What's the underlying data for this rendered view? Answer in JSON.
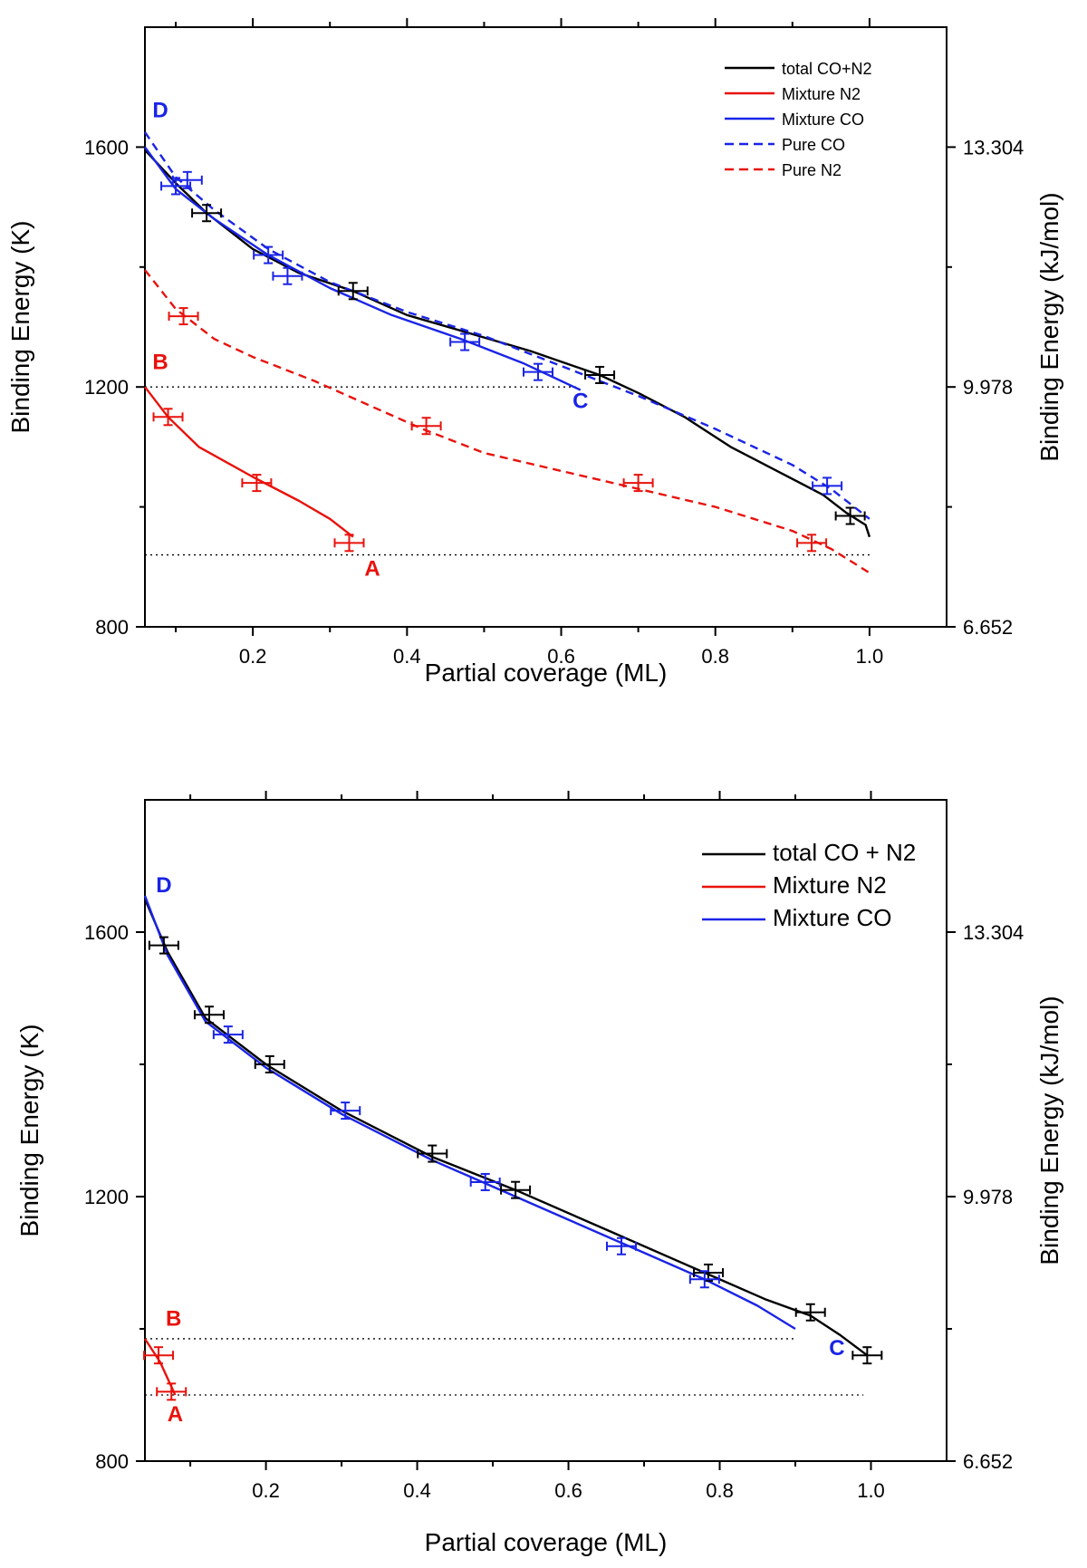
{
  "chart_data": [
    {
      "type": "line",
      "xlabel": "Partial coverage (ML)",
      "ylabel": "Binding Energy (K)",
      "ylabel_right": "Binding Energy (kJ/mol)",
      "xlim": [
        0.06,
        1.1
      ],
      "ylim": [
        800,
        1800
      ],
      "x_ticks": [
        "0.2",
        "0.4",
        "0.6",
        "0.8",
        "1.0"
      ],
      "x_tick_values": [
        0.2,
        0.4,
        0.6,
        0.8,
        1.0
      ],
      "y_ticks": [
        "800",
        "1200",
        "1600"
      ],
      "y_tick_values": [
        800,
        1200,
        1600
      ],
      "y_right_ticks": [
        "6.652",
        "9.978",
        "13.304"
      ],
      "legend_position": "top-right",
      "series": [
        {
          "name": "total CO+N2",
          "color": "#000000",
          "dash": false,
          "x": [
            0.06,
            0.1,
            0.14,
            0.2,
            0.26,
            0.33,
            0.4,
            0.48,
            0.56,
            0.65,
            0.7,
            0.76,
            0.82,
            0.88,
            0.94,
            0.97,
            0.995,
            1.0
          ],
          "y": [
            1595,
            1540,
            1490,
            1430,
            1390,
            1360,
            1320,
            1290,
            1260,
            1220,
            1190,
            1150,
            1100,
            1060,
            1020,
            990,
            970,
            950
          ],
          "errorbars": [
            {
              "x": 0.14,
              "y": 1490
            },
            {
              "x": 0.33,
              "y": 1360
            },
            {
              "x": 0.65,
              "y": 1220
            },
            {
              "x": 0.975,
              "y": 985
            }
          ]
        },
        {
          "name": "Mixture N2",
          "color": "#e8120c",
          "dash": false,
          "x": [
            0.06,
            0.09,
            0.13,
            0.2,
            0.26,
            0.3,
            0.33
          ],
          "y": [
            1200,
            1150,
            1100,
            1050,
            1010,
            980,
            950
          ],
          "errorbars": [
            {
              "x": 0.09,
              "y": 1150
            },
            {
              "x": 0.205,
              "y": 1040
            },
            {
              "x": 0.325,
              "y": 940
            }
          ]
        },
        {
          "name": "Mixture CO",
          "color": "#1a24e6",
          "dash": false,
          "x": [
            0.06,
            0.1,
            0.15,
            0.22,
            0.3,
            0.38,
            0.47,
            0.55,
            0.6,
            0.625
          ],
          "y": [
            1600,
            1530,
            1480,
            1420,
            1365,
            1320,
            1280,
            1240,
            1210,
            1195
          ],
          "errorbars": [
            {
              "x": 0.1,
              "y": 1535
            },
            {
              "x": 0.22,
              "y": 1420
            },
            {
              "x": 0.245,
              "y": 1385
            },
            {
              "x": 0.475,
              "y": 1275
            },
            {
              "x": 0.57,
              "y": 1225
            }
          ]
        },
        {
          "name": "Pure CO",
          "color": "#1a24e6",
          "dash": true,
          "x": [
            0.06,
            0.1,
            0.15,
            0.22,
            0.3,
            0.4,
            0.5,
            0.6,
            0.7,
            0.8,
            0.9,
            0.95,
            1.0
          ],
          "y": [
            1625,
            1550,
            1495,
            1430,
            1375,
            1325,
            1285,
            1235,
            1185,
            1130,
            1070,
            1030,
            980
          ],
          "errorbars": [
            {
              "x": 0.115,
              "y": 1545
            },
            {
              "x": 0.945,
              "y": 1035
            }
          ]
        },
        {
          "name": "Pure N2",
          "color": "#e8120c",
          "dash": true,
          "x": [
            0.06,
            0.1,
            0.15,
            0.2,
            0.28,
            0.35,
            0.42,
            0.5,
            0.6,
            0.7,
            0.8,
            0.9,
            0.95,
            1.0
          ],
          "y": [
            1395,
            1330,
            1280,
            1250,
            1210,
            1170,
            1130,
            1090,
            1060,
            1030,
            1000,
            960,
            930,
            890
          ],
          "errorbars": [
            {
              "x": 0.11,
              "y": 1318
            },
            {
              "x": 0.425,
              "y": 1135
            },
            {
              "x": 0.7,
              "y": 1040
            },
            {
              "x": 0.925,
              "y": 940
            }
          ]
        }
      ],
      "reference_lines": [
        {
          "y": 1200,
          "x_end": 0.62
        },
        {
          "y": 920,
          "x_end": 1.0
        }
      ],
      "point_labels": [
        {
          "text": "D",
          "x": 0.08,
          "y": 1650,
          "color": "#1a24e6"
        },
        {
          "text": "B",
          "x": 0.08,
          "y": 1230,
          "color": "#e8120c"
        },
        {
          "text": "C",
          "x": 0.625,
          "y": 1165,
          "color": "#1a24e6"
        },
        {
          "text": "A",
          "x": 0.355,
          "y": 885,
          "color": "#e8120c"
        }
      ]
    },
    {
      "type": "line",
      "xlabel": "Partial coverage (ML)",
      "ylabel": "Binding Energy (K)",
      "ylabel_right": "Binding Energy (kJ/mol)",
      "xlim": [
        0.04,
        1.1
      ],
      "ylim": [
        800,
        1800
      ],
      "x_ticks": [
        "0.2",
        "0.4",
        "0.6",
        "0.8",
        "1.0"
      ],
      "x_tick_values": [
        0.2,
        0.4,
        0.6,
        0.8,
        1.0
      ],
      "y_ticks": [
        "800",
        "1200",
        "1600"
      ],
      "y_tick_values": [
        800,
        1200,
        1600
      ],
      "y_right_ticks": [
        "6.652",
        "9.978",
        "13.304"
      ],
      "legend_position": "top-right",
      "series": [
        {
          "name": "total CO + N2",
          "color": "#000000",
          "dash": false,
          "x": [
            0.04,
            0.07,
            0.12,
            0.2,
            0.3,
            0.42,
            0.53,
            0.65,
            0.78,
            0.86,
            0.92,
            0.96,
            0.995
          ],
          "y": [
            1650,
            1570,
            1470,
            1400,
            1330,
            1260,
            1210,
            1150,
            1085,
            1045,
            1020,
            990,
            960
          ],
          "errorbars": [
            {
              "x": 0.065,
              "y": 1580
            },
            {
              "x": 0.125,
              "y": 1475
            },
            {
              "x": 0.205,
              "y": 1400
            },
            {
              "x": 0.42,
              "y": 1265
            },
            {
              "x": 0.53,
              "y": 1210
            },
            {
              "x": 0.785,
              "y": 1085
            },
            {
              "x": 0.92,
              "y": 1025
            },
            {
              "x": 0.995,
              "y": 960
            }
          ]
        },
        {
          "name": "Mixture N2",
          "color": "#e8120c",
          "dash": false,
          "x": [
            0.04,
            0.06,
            0.08
          ],
          "y": [
            985,
            950,
            900
          ],
          "errorbars": [
            {
              "x": 0.058,
              "y": 960
            },
            {
              "x": 0.075,
              "y": 905
            }
          ]
        },
        {
          "name": "Mixture CO",
          "color": "#1a24e6",
          "dash": false,
          "x": [
            0.04,
            0.07,
            0.12,
            0.2,
            0.3,
            0.42,
            0.5,
            0.6,
            0.7,
            0.78,
            0.85,
            0.9
          ],
          "y": [
            1655,
            1565,
            1465,
            1395,
            1325,
            1255,
            1215,
            1165,
            1115,
            1075,
            1035,
            1000
          ],
          "errorbars": [
            {
              "x": 0.15,
              "y": 1445
            },
            {
              "x": 0.305,
              "y": 1330
            },
            {
              "x": 0.49,
              "y": 1222
            },
            {
              "x": 0.67,
              "y": 1125
            },
            {
              "x": 0.78,
              "y": 1075
            }
          ]
        }
      ],
      "reference_lines": [
        {
          "y": 985,
          "x_end": 0.9
        },
        {
          "y": 900,
          "x_end": 0.99
        }
      ],
      "point_labels": [
        {
          "text": "D",
          "x": 0.065,
          "y": 1660,
          "color": "#1a24e6"
        },
        {
          "text": "B",
          "x": 0.078,
          "y": 1005,
          "color": "#e8120c"
        },
        {
          "text": "C",
          "x": 0.955,
          "y": 960,
          "color": "#1a24e6"
        },
        {
          "text": "A",
          "x": 0.08,
          "y": 860,
          "color": "#e8120c"
        }
      ]
    }
  ]
}
